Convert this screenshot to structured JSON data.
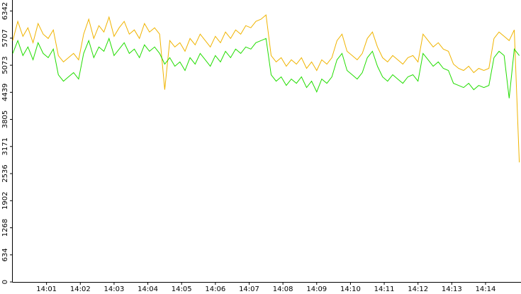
{
  "chart_data": {
    "type": "line",
    "x": [
      0,
      0.15,
      0.3,
      0.45,
      0.6,
      0.75,
      0.9,
      1.05,
      1.2,
      1.35,
      1.5,
      1.65,
      1.8,
      1.95,
      2.1,
      2.25,
      2.4,
      2.55,
      2.7,
      2.85,
      3,
      3.15,
      3.3,
      3.45,
      3.6,
      3.75,
      3.9,
      4.05,
      4.2,
      4.35,
      4.5,
      4.65,
      4.8,
      4.95,
      5.1,
      5.25,
      5.4,
      5.55,
      5.7,
      5.85,
      6,
      6.15,
      6.3,
      6.45,
      6.6,
      6.75,
      6.9,
      7.05,
      7.2,
      7.35,
      7.5,
      7.65,
      7.8,
      7.95,
      8.1,
      8.25,
      8.4,
      8.55,
      8.7,
      8.85,
      9,
      9.15,
      9.3,
      9.45,
      9.6,
      9.75,
      9.9,
      10.05,
      10.2,
      10.35,
      10.5,
      10.65,
      10.8,
      10.95,
      11.1,
      11.25,
      11.4,
      11.55,
      11.7,
      11.85,
      12,
      12.15,
      12.3,
      12.45,
      12.6,
      12.75,
      12.9,
      13.05,
      13.2,
      13.35,
      13.5,
      13.65,
      13.8,
      13.95,
      14.1,
      14.25,
      14.4,
      14.55,
      14.7,
      14.85,
      15
    ],
    "series": [
      {
        "color": "#f0b400",
        "values": [
          5650,
          6100,
          5750,
          5950,
          5600,
          6050,
          5800,
          5700,
          5900,
          5300,
          5150,
          5250,
          5350,
          5200,
          5800,
          6150,
          5700,
          6000,
          5850,
          6200,
          5750,
          5950,
          6100,
          5800,
          5900,
          5700,
          6050,
          5850,
          5950,
          5800,
          4500,
          5650,
          5500,
          5600,
          5400,
          5700,
          5550,
          5800,
          5650,
          5500,
          5750,
          5600,
          5850,
          5700,
          5900,
          5800,
          6000,
          5950,
          6100,
          6150,
          6250,
          5300,
          5150,
          5250,
          5050,
          5200,
          5100,
          5250,
          5000,
          5150,
          4950,
          5200,
          5100,
          5250,
          5650,
          5800,
          5400,
          5300,
          5200,
          5350,
          5700,
          5850,
          5500,
          5250,
          5150,
          5300,
          5200,
          5100,
          5250,
          5300,
          5150,
          5800,
          5650,
          5500,
          5600,
          5450,
          5400,
          5100,
          5000,
          4950,
          5050,
          4900,
          5000,
          4950,
          5000,
          5700,
          5850,
          5750,
          5650,
          5900,
          2800
        ]
      },
      {
        "color": "#22dd00",
        "values": [
          5350,
          5650,
          5300,
          5500,
          5200,
          5600,
          5350,
          5250,
          5450,
          4850,
          4700,
          4800,
          4900,
          4750,
          5350,
          5650,
          5250,
          5500,
          5400,
          5700,
          5300,
          5450,
          5600,
          5350,
          5450,
          5250,
          5550,
          5400,
          5500,
          5350,
          5100,
          5250,
          5050,
          5150,
          4950,
          5250,
          5100,
          5350,
          5200,
          5050,
          5300,
          5150,
          5400,
          5250,
          5450,
          5350,
          5500,
          5450,
          5600,
          5650,
          5700,
          4850,
          4700,
          4800,
          4600,
          4750,
          4650,
          4800,
          4550,
          4700,
          4450,
          4750,
          4650,
          4800,
          5200,
          5350,
          4950,
          4850,
          4750,
          4900,
          5250,
          5400,
          5050,
          4800,
          4700,
          4850,
          4750,
          4650,
          4800,
          4850,
          4700,
          5350,
          5200,
          5050,
          5150,
          5000,
          4950,
          4650,
          4600,
          4550,
          4650,
          4500,
          4600,
          4550,
          4600,
          5250,
          5400,
          5300,
          4300,
          5450,
          5300
        ]
      }
    ],
    "xlim": [
      0,
      15.05
    ],
    "xticks": [
      {
        "value": 1,
        "label": "14:01"
      },
      {
        "value": 2,
        "label": "14:02"
      },
      {
        "value": 3,
        "label": "14:03"
      },
      {
        "value": 4,
        "label": "14:04"
      },
      {
        "value": 5,
        "label": "14:05"
      },
      {
        "value": 6,
        "label": "14:06"
      },
      {
        "value": 7,
        "label": "14:07"
      },
      {
        "value": 8,
        "label": "14:08"
      },
      {
        "value": 9,
        "label": "14:09"
      },
      {
        "value": 10,
        "label": "14:10"
      },
      {
        "value": 11,
        "label": "14:11"
      },
      {
        "value": 12,
        "label": "14:12"
      },
      {
        "value": 13,
        "label": "14:13"
      },
      {
        "value": 14,
        "label": "14:14"
      }
    ],
    "ylim": [
      0,
      6600
    ],
    "yticks": [
      0,
      634,
      1268,
      1902,
      2536,
      3171,
      3805,
      4439,
      5073,
      5707,
      6342
    ]
  }
}
